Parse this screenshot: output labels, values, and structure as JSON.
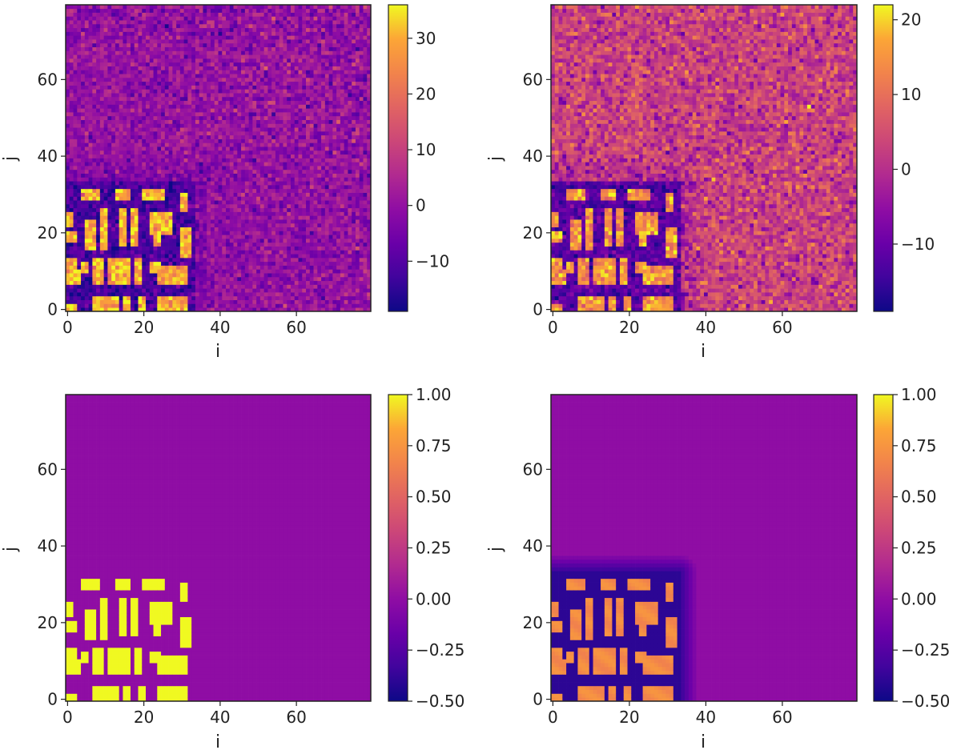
{
  "chart_data": [
    {
      "type": "heatmap",
      "colormap": "plasma",
      "xlabel": "i",
      "ylabel": "j",
      "grid_shape": [
        80,
        80
      ],
      "xlim": [
        0,
        79
      ],
      "ylim": [
        0,
        79
      ],
      "x_ticks": [
        "0",
        "20",
        "40",
        "60"
      ],
      "y_ticks": [
        "0",
        "20",
        "40",
        "60"
      ],
      "colorbar": {
        "range": [
          -19,
          36
        ],
        "ticks": [
          "30",
          "20",
          "10",
          "0",
          "−10"
        ]
      },
      "description_values": {
        "background": 0,
        "noise_std": 5,
        "block_high": 30,
        "gap_low": -12
      }
    },
    {
      "type": "heatmap",
      "colormap": "plasma",
      "xlabel": "i",
      "ylabel": "j",
      "grid_shape": [
        80,
        80
      ],
      "xlim": [
        0,
        79
      ],
      "ylim": [
        0,
        79
      ],
      "x_ticks": [
        "0",
        "20",
        "40",
        "60"
      ],
      "y_ticks": [
        "0",
        "20",
        "40",
        "60"
      ],
      "colorbar": {
        "range": [
          -19,
          22
        ],
        "ticks": [
          "20",
          "10",
          "0",
          "−10"
        ]
      },
      "description_values": {
        "background": 3,
        "noise_std": 4.5,
        "block_high": 15,
        "gap_low": -12
      }
    },
    {
      "type": "heatmap",
      "colormap": "plasma",
      "xlabel": "i",
      "ylabel": "j",
      "grid_shape": [
        80,
        80
      ],
      "xlim": [
        0,
        79
      ],
      "ylim": [
        0,
        79
      ],
      "x_ticks": [
        "0",
        "20",
        "40",
        "60"
      ],
      "y_ticks": [
        "0",
        "20",
        "40",
        "60"
      ],
      "colorbar": {
        "range": [
          -0.5,
          1.0
        ],
        "ticks": [
          "1.00",
          "0.75",
          "0.50",
          "0.25",
          "0.00",
          "−0.25",
          "−0.50"
        ]
      },
      "description_values": {
        "background": 0.0,
        "block_high": 1.0
      }
    },
    {
      "type": "heatmap",
      "colormap": "plasma",
      "xlabel": "i",
      "ylabel": "j",
      "grid_shape": [
        80,
        80
      ],
      "xlim": [
        0,
        79
      ],
      "ylim": [
        0,
        79
      ],
      "x_ticks": [
        "0",
        "20",
        "40",
        "60"
      ],
      "y_ticks": [
        "0",
        "20",
        "40",
        "60"
      ],
      "colorbar": {
        "range": [
          -0.5,
          1.0
        ],
        "ticks": [
          "1.00",
          "0.75",
          "0.50",
          "0.25",
          "0.00",
          "−0.25",
          "−0.50"
        ]
      },
      "description_values": {
        "background": 0.0,
        "block_high": 0.7,
        "gap_low": -0.4
      }
    }
  ],
  "pattern_blocks": [
    [
      1,
      29,
      1,
      4
    ],
    [
      4,
      29,
      9,
      32
    ],
    [
      13,
      29,
      17,
      32
    ],
    [
      20,
      29,
      26,
      32
    ],
    [
      30,
      26,
      32,
      31
    ],
    [
      0,
      22,
      2,
      26
    ],
    [
      5,
      16,
      8,
      24
    ],
    [
      9,
      16,
      11,
      27
    ],
    [
      14,
      17,
      16,
      27
    ],
    [
      17,
      17,
      19,
      27
    ],
    [
      22,
      20,
      28,
      26
    ],
    [
      23,
      17,
      25,
      20
    ],
    [
      30,
      14,
      33,
      22
    ],
    [
      0,
      18,
      3,
      21
    ],
    [
      0,
      11,
      3,
      14
    ],
    [
      0,
      7,
      4,
      11
    ],
    [
      4,
      10,
      6,
      13
    ],
    [
      7,
      7,
      10,
      14
    ],
    [
      11,
      7,
      17,
      14
    ],
    [
      18,
      7,
      20,
      14
    ],
    [
      24,
      7,
      32,
      12
    ],
    [
      22,
      10,
      25,
      13
    ],
    [
      7,
      0,
      14,
      4
    ],
    [
      15,
      0,
      17,
      4
    ],
    [
      19,
      0,
      21,
      4
    ],
    [
      24,
      0,
      32,
      4
    ],
    [
      0,
      0,
      3,
      2
    ]
  ]
}
